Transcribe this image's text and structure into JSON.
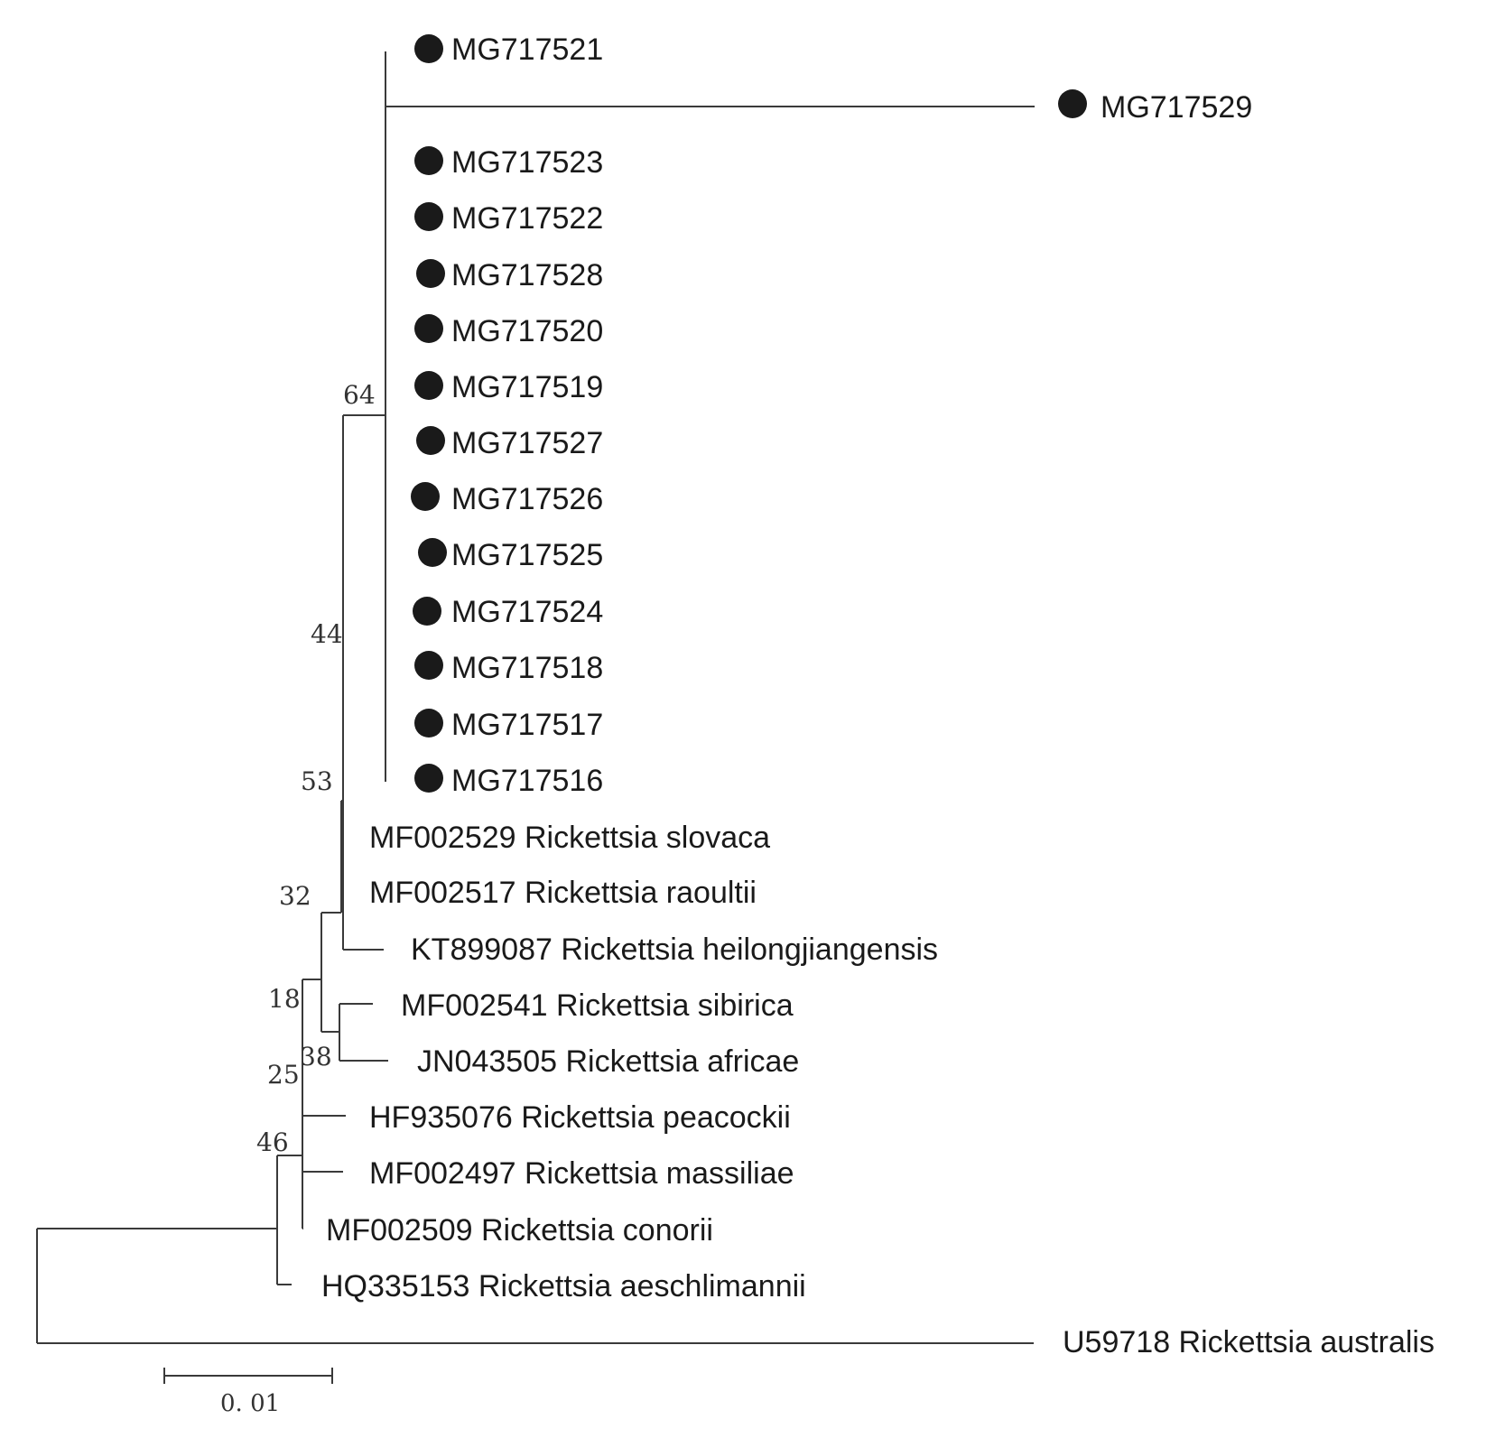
{
  "figure": {
    "type": "phylogenetic-tree",
    "colors": {
      "line": "#3a3a3a",
      "text": "#1a1a1a",
      "marker": "#1a1a1a"
    }
  },
  "leaves": {
    "mg717521": "MG717521",
    "mg717529": "MG717529",
    "mg717523": "MG717523",
    "mg717522": "MG717522",
    "mg717528": "MG717528",
    "mg717520": "MG717520",
    "mg717519": "MG717519",
    "mg717527": "MG717527",
    "mg717526": "MG717526",
    "mg717525": "MG717525",
    "mg717524": "MG717524",
    "mg717518": "MG717518",
    "mg717517": "MG717517",
    "mg717516": "MG717516",
    "slovaca": "MF002529 Rickettsia slovaca",
    "raoultii": "MF002517 Rickettsia raoultii",
    "heilongjiangensis": "KT899087 Rickettsia heilongjiangensis",
    "sibirica": "MF002541 Rickettsia sibirica",
    "africae": "JN043505 Rickettsia africae",
    "peacockii": "HF935076 Rickettsia peacockii",
    "massiliae": "MF002497 Rickettsia massiliae",
    "conorii": "MF002509 Rickettsia conorii",
    "aeschlimannii": "HQ335153 Rickettsia aeschlimannii",
    "australis": "U59718 Rickettsia australis"
  },
  "bootstrap": {
    "n64": "64",
    "n44": "44",
    "n53": "53",
    "n32": "32",
    "n18": "18",
    "n38": "38",
    "n25": "25",
    "n46": "46"
  },
  "scale_bar": {
    "label": "0. 01",
    "value": 0.01
  }
}
